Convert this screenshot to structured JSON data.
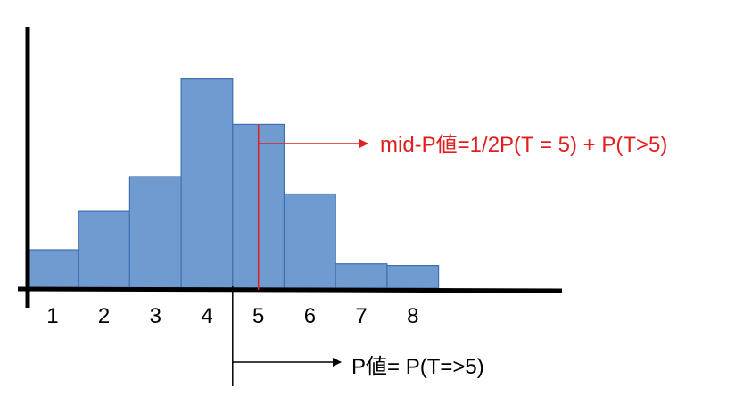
{
  "chart_data": {
    "type": "bar",
    "title": "",
    "xlabel": "",
    "ylabel": "",
    "categories": [
      "1",
      "2",
      "3",
      "4",
      "5",
      "6",
      "7",
      "8"
    ],
    "values": [
      1.1,
      2.2,
      3.2,
      6.0,
      4.7,
      2.7,
      0.7,
      0.65
    ],
    "ylim": [
      0,
      7.5
    ],
    "grid": false,
    "legend": "none",
    "bar_color": "#6f9bd1",
    "bar_edge_color": "#3f6fb2",
    "split_value": 5,
    "annotations": {
      "mid_p": {
        "text": "mid-P値=1/2P(T = 5) + P(T>5)",
        "color": "#e02020",
        "target_category": "5"
      },
      "p_value": {
        "text": "P値= P(T=>5)",
        "color": "#000000"
      }
    }
  }
}
